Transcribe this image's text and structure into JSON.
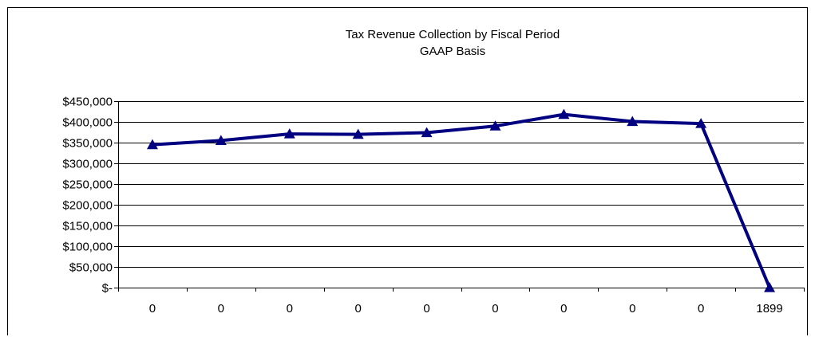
{
  "chart_data": {
    "type": "line",
    "title": "Tax Revenue Collection by Fiscal Period",
    "subtitle": "GAAP Basis",
    "xlabel": "",
    "ylabel": "",
    "categories": [
      "0",
      "0",
      "0",
      "0",
      "0",
      "0",
      "0",
      "0",
      "0",
      "1899"
    ],
    "series": [
      {
        "values": [
          345000,
          355000,
          371000,
          370000,
          374000,
          390000,
          418000,
          401000,
          396000,
          0
        ],
        "marker": "triangle"
      }
    ],
    "ylim": [
      0,
      450000
    ],
    "ystep": 50000,
    "y_tick_labels": [
      "$-",
      "$50,000",
      "$100,000",
      "$150,000",
      "$200,000",
      "$250,000",
      "$300,000",
      "$350,000",
      "$400,000",
      "$450,000"
    ],
    "grid": true,
    "legend": "none",
    "colors": {
      "series": "#000080",
      "grid": "#000000",
      "axis": "#000000",
      "text": "#000000"
    }
  }
}
